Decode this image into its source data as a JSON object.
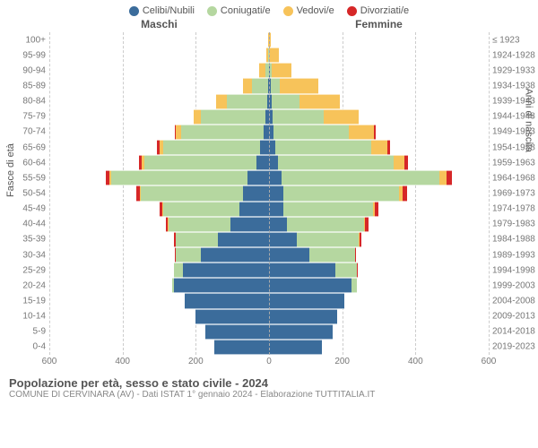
{
  "legend": {
    "items": [
      {
        "label": "Celibi/Nubili",
        "color": "#3b6c9b"
      },
      {
        "label": "Coniugati/e",
        "color": "#b5d7a0"
      },
      {
        "label": "Vedovi/e",
        "color": "#f7c35a"
      },
      {
        "label": "Divorziati/e",
        "color": "#d62728"
      }
    ]
  },
  "headers": {
    "left": "Maschi",
    "right": "Femmine"
  },
  "axis_titles": {
    "left": "Fasce di età",
    "right": "Anni di nascita"
  },
  "footer": {
    "title": "Popolazione per età, sesso e stato civile - 2024",
    "subtitle": "COMUNE DI CERVINARA (AV) - Dati ISTAT 1° gennaio 2024 - Elaborazione TUTTITALIA.IT"
  },
  "chart": {
    "type": "population-pyramid",
    "x_max": 600,
    "x_ticks": [
      600,
      400,
      200,
      0,
      200,
      400,
      600
    ],
    "background_color": "#ffffff",
    "grid_color": "#cccccc",
    "center_color": "#aaaaaa",
    "age_label_fontsize": 10,
    "tick_fontsize": 10,
    "colors": {
      "celibi": "#3b6c9b",
      "coniugati": "#b5d7a0",
      "vedovi": "#f7c35a",
      "divorziati": "#d62728"
    },
    "rows": [
      {
        "age": "100+",
        "birth": "≤ 1923",
        "m": {
          "ce": 0,
          "co": 0,
          "v": 2,
          "d": 0
        },
        "f": {
          "ce": 0,
          "co": 0,
          "v": 5,
          "d": 0
        }
      },
      {
        "age": "95-99",
        "birth": "1924-1928",
        "m": {
          "ce": 1,
          "co": 1,
          "v": 5,
          "d": 0
        },
        "f": {
          "ce": 1,
          "co": 0,
          "v": 25,
          "d": 0
        }
      },
      {
        "age": "90-94",
        "birth": "1929-1933",
        "m": {
          "ce": 1,
          "co": 10,
          "v": 15,
          "d": 0
        },
        "f": {
          "ce": 2,
          "co": 5,
          "v": 55,
          "d": 0
        }
      },
      {
        "age": "85-89",
        "birth": "1934-1938",
        "m": {
          "ce": 2,
          "co": 45,
          "v": 25,
          "d": 0
        },
        "f": {
          "ce": 5,
          "co": 25,
          "v": 105,
          "d": 0
        }
      },
      {
        "age": "80-84",
        "birth": "1939-1943",
        "m": {
          "ce": 5,
          "co": 110,
          "v": 30,
          "d": 0
        },
        "f": {
          "ce": 8,
          "co": 75,
          "v": 110,
          "d": 0
        }
      },
      {
        "age": "75-79",
        "birth": "1944-1948",
        "m": {
          "ce": 10,
          "co": 175,
          "v": 20,
          "d": 0
        },
        "f": {
          "ce": 10,
          "co": 140,
          "v": 95,
          "d": 0
        }
      },
      {
        "age": "70-74",
        "birth": "1949-1953",
        "m": {
          "ce": 15,
          "co": 225,
          "v": 15,
          "d": 3
        },
        "f": {
          "ce": 12,
          "co": 205,
          "v": 70,
          "d": 5
        }
      },
      {
        "age": "65-69",
        "birth": "1954-1958",
        "m": {
          "ce": 25,
          "co": 265,
          "v": 10,
          "d": 5
        },
        "f": {
          "ce": 18,
          "co": 260,
          "v": 45,
          "d": 8
        }
      },
      {
        "age": "60-64",
        "birth": "1959-1963",
        "m": {
          "ce": 35,
          "co": 305,
          "v": 8,
          "d": 8
        },
        "f": {
          "ce": 25,
          "co": 315,
          "v": 30,
          "d": 10
        }
      },
      {
        "age": "55-59",
        "birth": "1964-1968",
        "m": {
          "ce": 60,
          "co": 370,
          "v": 5,
          "d": 12
        },
        "f": {
          "ce": 35,
          "co": 430,
          "v": 20,
          "d": 15
        }
      },
      {
        "age": "50-54",
        "birth": "1969-1973",
        "m": {
          "ce": 70,
          "co": 280,
          "v": 3,
          "d": 10
        },
        "f": {
          "ce": 40,
          "co": 315,
          "v": 10,
          "d": 12
        }
      },
      {
        "age": "45-49",
        "birth": "1974-1978",
        "m": {
          "ce": 80,
          "co": 210,
          "v": 2,
          "d": 8
        },
        "f": {
          "ce": 40,
          "co": 245,
          "v": 5,
          "d": 10
        }
      },
      {
        "age": "40-44",
        "birth": "1979-1983",
        "m": {
          "ce": 105,
          "co": 170,
          "v": 1,
          "d": 6
        },
        "f": {
          "ce": 50,
          "co": 210,
          "v": 3,
          "d": 8
        }
      },
      {
        "age": "35-39",
        "birth": "1984-1988",
        "m": {
          "ce": 140,
          "co": 115,
          "v": 0,
          "d": 4
        },
        "f": {
          "ce": 75,
          "co": 170,
          "v": 2,
          "d": 6
        }
      },
      {
        "age": "30-34",
        "birth": "1989-1993",
        "m": {
          "ce": 185,
          "co": 70,
          "v": 0,
          "d": 2
        },
        "f": {
          "ce": 110,
          "co": 125,
          "v": 0,
          "d": 3
        }
      },
      {
        "age": "25-29",
        "birth": "1994-1998",
        "m": {
          "ce": 235,
          "co": 25,
          "v": 0,
          "d": 0
        },
        "f": {
          "ce": 180,
          "co": 60,
          "v": 0,
          "d": 2
        }
      },
      {
        "age": "20-24",
        "birth": "1999-2003",
        "m": {
          "ce": 260,
          "co": 5,
          "v": 0,
          "d": 0
        },
        "f": {
          "ce": 225,
          "co": 15,
          "v": 0,
          "d": 0
        }
      },
      {
        "age": "15-19",
        "birth": "2004-2008",
        "m": {
          "ce": 230,
          "co": 0,
          "v": 0,
          "d": 0
        },
        "f": {
          "ce": 205,
          "co": 0,
          "v": 0,
          "d": 0
        }
      },
      {
        "age": "10-14",
        "birth": "2009-2013",
        "m": {
          "ce": 200,
          "co": 0,
          "v": 0,
          "d": 0
        },
        "f": {
          "ce": 185,
          "co": 0,
          "v": 0,
          "d": 0
        }
      },
      {
        "age": "5-9",
        "birth": "2014-2018",
        "m": {
          "ce": 175,
          "co": 0,
          "v": 0,
          "d": 0
        },
        "f": {
          "ce": 175,
          "co": 0,
          "v": 0,
          "d": 0
        }
      },
      {
        "age": "0-4",
        "birth": "2019-2023",
        "m": {
          "ce": 150,
          "co": 0,
          "v": 0,
          "d": 0
        },
        "f": {
          "ce": 145,
          "co": 0,
          "v": 0,
          "d": 0
        }
      }
    ]
  }
}
